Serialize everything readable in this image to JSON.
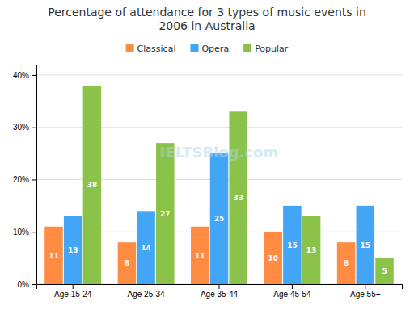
{
  "chart_data": {
    "type": "bar",
    "title": "Percentage of attendance for 3 types of music events in\n2006 in Australia",
    "categories": [
      "Age 15-24",
      "Age 25-34",
      "Age 35-44",
      "Age 45-54",
      "Age 55+"
    ],
    "series": [
      {
        "name": "Classical",
        "color": "#FF8C42",
        "values": [
          11,
          8,
          11,
          10,
          8
        ]
      },
      {
        "name": "Opera",
        "color": "#42A5F5",
        "values": [
          13,
          14,
          25,
          15,
          15
        ]
      },
      {
        "name": "Popular",
        "color": "#8BC34A",
        "values": [
          38,
          27,
          33,
          13,
          5
        ]
      }
    ],
    "ylim": [
      0,
      42
    ],
    "yticks": [
      {
        "value": 0,
        "label": "0%"
      },
      {
        "value": 10,
        "label": "10%"
      },
      {
        "value": 20,
        "label": "20%"
      },
      {
        "value": 30,
        "label": "30%"
      },
      {
        "value": 40,
        "label": "40%"
      }
    ],
    "grid": true,
    "legend": "top",
    "data_labels": true,
    "annotations": [
      "IELTSBlog.com"
    ]
  }
}
